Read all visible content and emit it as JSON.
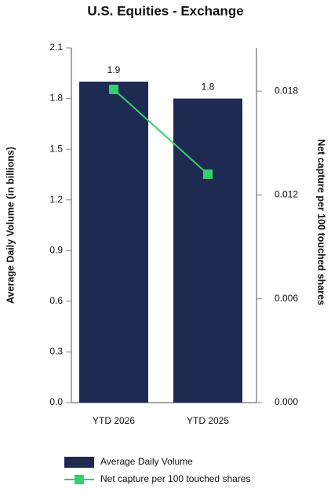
{
  "chart_data": {
    "type": "bar",
    "title": "U.S. Equities - Exchange",
    "categories": [
      "YTD 2026",
      "YTD 2025"
    ],
    "y_label": "Average Daily Volume (in billions)",
    "y2_label": "Net capture per 100 touched shares",
    "series": [
      {
        "name": "Average Daily Volume",
        "type": "bar",
        "color": "#1f2a52",
        "values": [
          1.9,
          1.8
        ]
      },
      {
        "name": "Net capture per 100 touched shares",
        "type": "line",
        "axis": "y2",
        "color": "#33d16a",
        "values": [
          0.0181,
          0.0132
        ]
      }
    ],
    "ylim": [
      0,
      2.1
    ],
    "yticks": [
      {
        "value": 0,
        "label": "0.0"
      },
      0.3,
      0.6,
      0.9,
      1.2,
      1.5,
      1.8,
      2.1
    ],
    "y2lim": [
      0,
      0.0205
    ],
    "y2ticks": [
      {
        "value": 0,
        "label": "0.000"
      },
      {
        "value": 0.006,
        "label": "0.006"
      },
      {
        "value": 0.012,
        "label": "0.012"
      },
      {
        "value": 0.018,
        "label": "0.018"
      }
    ],
    "legend": "bottom"
  }
}
